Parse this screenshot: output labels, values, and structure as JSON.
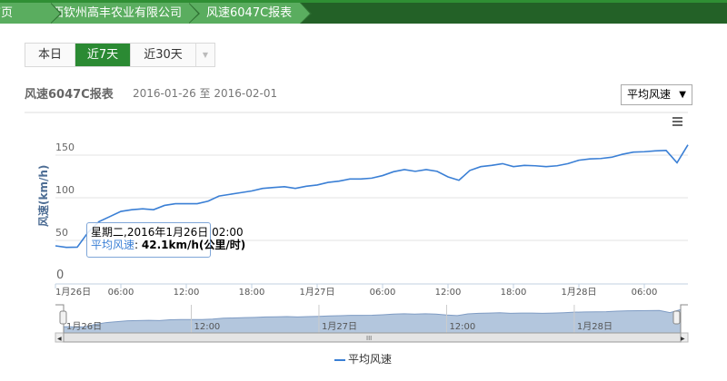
{
  "breadcrumb": [
    "首页",
    "广西钦州高丰农业有限公司",
    "风速6047C报表"
  ],
  "range_buttons": [
    "本日",
    "近7天",
    "近30天"
  ],
  "active_range": "近7天",
  "report": {
    "title": "风速6047C报表",
    "date_range": "2016-01-26 至 2016-02-01"
  },
  "metric_select": {
    "value": "平均风速"
  },
  "colors": {
    "line": "#3a7fd5",
    "accent": "#2b8a33",
    "nav_fill": "#b3c6dd"
  },
  "tooltip": {
    "header": "星期二,2016年1月26日 02:00",
    "series": "平均风速",
    "value": "42.1km/h(公里/时)"
  },
  "legend": "平均风速",
  "chart_data": {
    "type": "line",
    "ylabel": "风速(km/h)",
    "ylim": [
      0,
      160
    ],
    "yticks": [
      0,
      50,
      100,
      150
    ],
    "xticks": [
      "1月26日",
      "06:00",
      "12:00",
      "18:00",
      "1月27日",
      "06:00",
      "12:00",
      "18:00",
      "1月28日",
      "06:00"
    ],
    "nav_ticks": [
      "1月26日",
      "12:00",
      "1月27日",
      "12:00",
      "1月28日"
    ],
    "x_start": "2016-01-26 00:00",
    "x_step": "1h",
    "grid": true,
    "series": [
      {
        "name": "平均风速",
        "values": [
          43.6,
          41.8,
          42.1,
          59.6,
          72,
          78,
          84,
          86,
          87,
          86,
          91,
          93,
          93,
          93,
          96,
          102,
          104,
          106,
          108,
          111,
          112,
          113,
          111,
          113.5,
          115,
          118,
          119.5,
          122,
          122,
          123,
          126,
          130.5,
          133,
          131,
          133,
          131,
          124.5,
          120.5,
          132,
          136.5,
          138,
          140,
          136.5,
          138,
          137.5,
          136.5,
          137.5,
          140,
          144,
          145.5,
          146,
          147.5,
          151,
          153.5,
          154,
          155,
          155.5,
          141,
          162
        ]
      }
    ]
  }
}
